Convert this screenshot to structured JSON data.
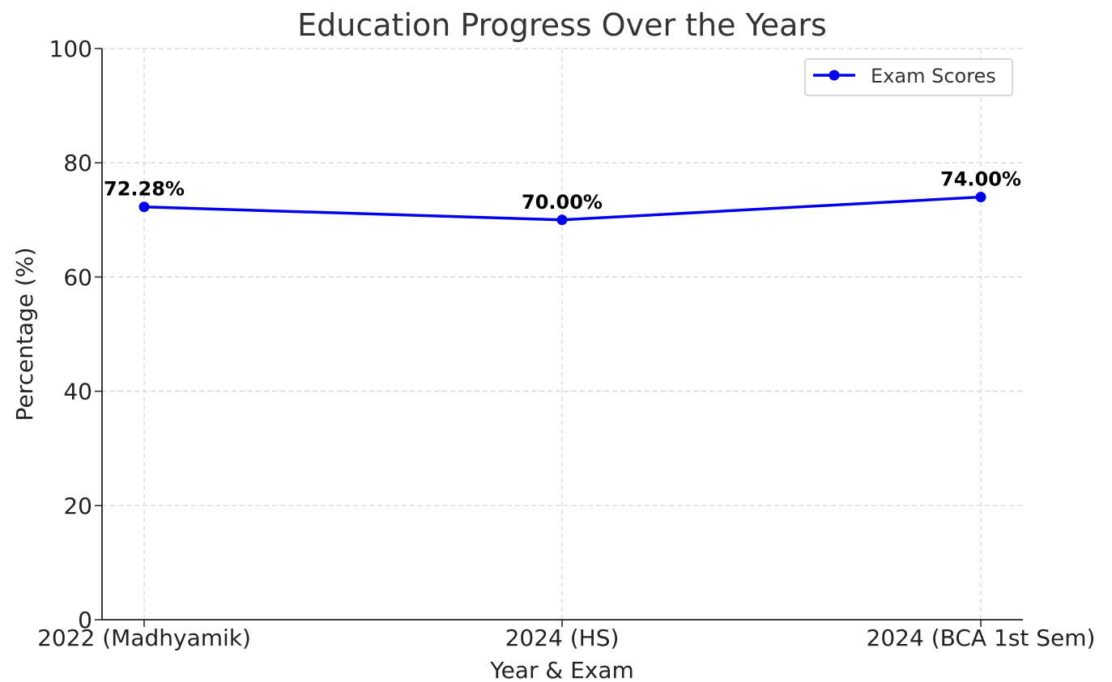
{
  "chart_data": {
    "type": "line",
    "title": "Education Progress Over the Years",
    "xlabel": "Year & Exam",
    "ylabel": "Percentage (%)",
    "categories": [
      "2022 (Madhyamik)",
      "2024 (HS)",
      "2024 (BCA 1st Sem)"
    ],
    "series": [
      {
        "name": "Exam Scores",
        "values": [
          72.28,
          70.0,
          74.0
        ],
        "labels": [
          "72.28%",
          "70.00%",
          "74.00%"
        ],
        "color": "#0000ee"
      }
    ],
    "ylim": [
      0,
      100
    ],
    "yticks": [
      "0",
      "20",
      "40",
      "60",
      "80",
      "100"
    ],
    "grid": true,
    "legend_position": "top-right"
  }
}
